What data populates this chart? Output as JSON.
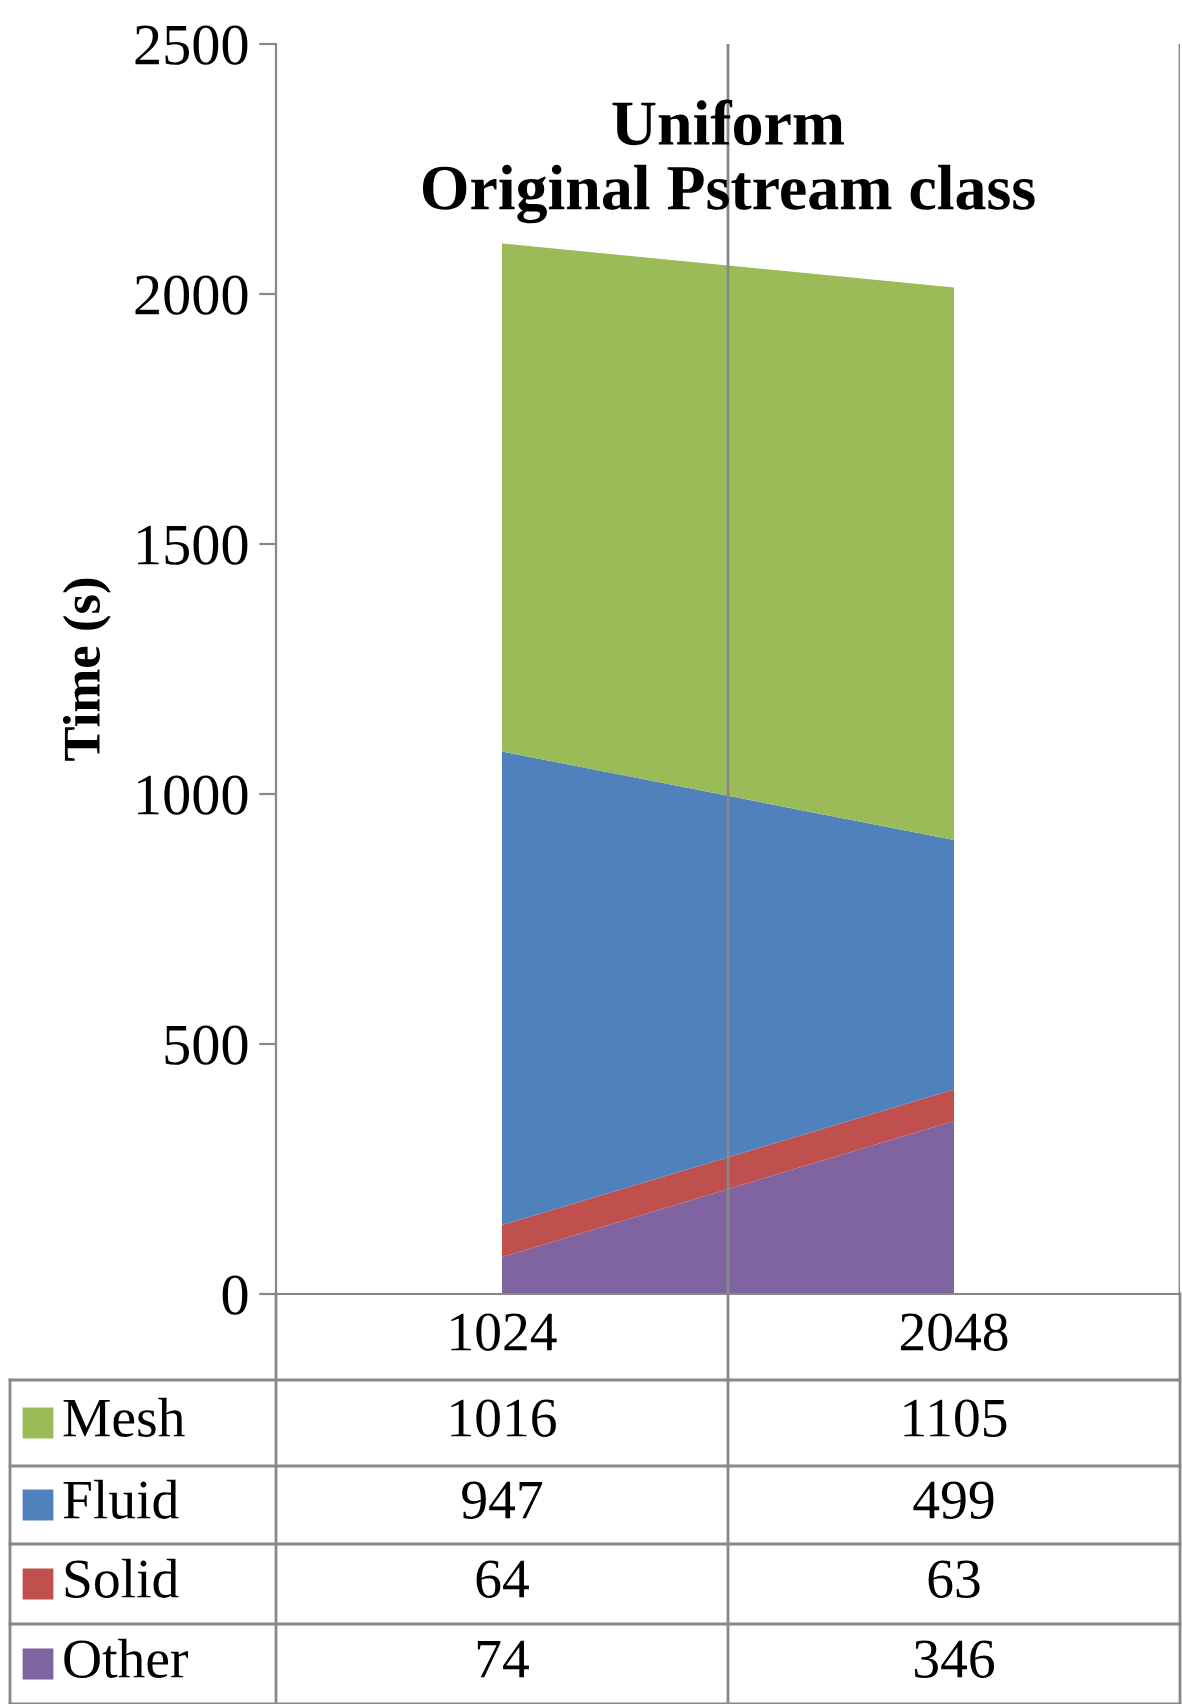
{
  "chart_data": {
    "type": "area",
    "title": "Uniform\nOriginal Pstream class",
    "ylabel": "Time (s)",
    "categories": [
      "1024",
      "2048"
    ],
    "stacked": true,
    "ylim": [
      0,
      2500
    ],
    "yticks": [
      0,
      500,
      1000,
      1500,
      2000,
      2500
    ],
    "grid": "x",
    "data_labels": true,
    "legend": "bottom left",
    "series": [
      {
        "name": "Other",
        "color": "#8064a2",
        "values": [
          74,
          346
        ]
      },
      {
        "name": "Solid",
        "color": "#c0504d",
        "values": [
          64,
          63
        ]
      },
      {
        "name": "Fluid",
        "color": "#4f81bd",
        "values": [
          947,
          499
        ]
      },
      {
        "name": "Mesh",
        "color": "#9bbb59",
        "values": [
          1016,
          1105
        ]
      }
    ]
  }
}
